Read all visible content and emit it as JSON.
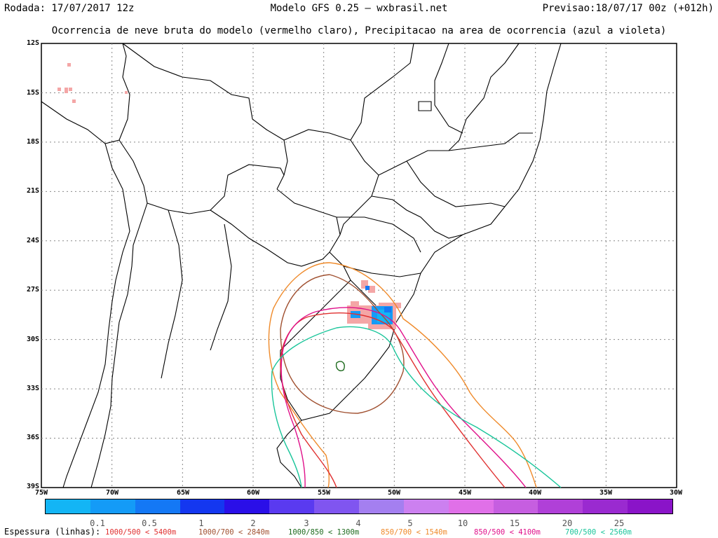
{
  "header": {
    "run": "Rodada: 17/07/2017 12z",
    "model": "Modelo GFS 0.25 — wxbrasil.net",
    "forecast": "Previsao:18/07/17 00z (+012h)",
    "subtitle": "Ocorrencia de neve bruta do modelo (vermelho claro), Precipitacao na area de ocorrencia (azul a violeta)"
  },
  "map": {
    "lat_labels": [
      "12S",
      "15S",
      "18S",
      "21S",
      "24S",
      "27S",
      "30S",
      "33S",
      "36S",
      "39S"
    ],
    "lon_labels": [
      "75W",
      "70W",
      "65W",
      "60W",
      "55W",
      "50W",
      "45W",
      "40W",
      "35W",
      "30W"
    ],
    "grid": true,
    "snow_color": "#f4a6a6",
    "border_color": "#000000"
  },
  "colorbar": {
    "colors": [
      "#13b5f5",
      "#149bf7",
      "#1478f5",
      "#1437f0",
      "#2a0fe8",
      "#5a3af0",
      "#8055f0",
      "#a47ff0",
      "#cc80f0",
      "#e070e8",
      "#c65ee0",
      "#b040d8",
      "#9a2ad0",
      "#8a14c8"
    ],
    "ticks": [
      "0.1",
      "0.5",
      "1",
      "2",
      "3",
      "4",
      "5",
      "10",
      "15",
      "20",
      "25"
    ]
  },
  "legend": {
    "title": "Espessura (linhas):",
    "items": [
      {
        "label": "1000/500 < 5400m",
        "color": "#e03030"
      },
      {
        "label": "1000/700 < 2840m",
        "color": "#a05030"
      },
      {
        "label": "1000/850 < 1300m",
        "color": "#1e6b1e"
      },
      {
        "label": "850/700 < 1540m",
        "color": "#ef8a2a"
      },
      {
        "label": "850/500 < 4100m",
        "color": "#e0108a"
      },
      {
        "label": "700/500 < 2560m",
        "color": "#19c59a"
      }
    ]
  }
}
